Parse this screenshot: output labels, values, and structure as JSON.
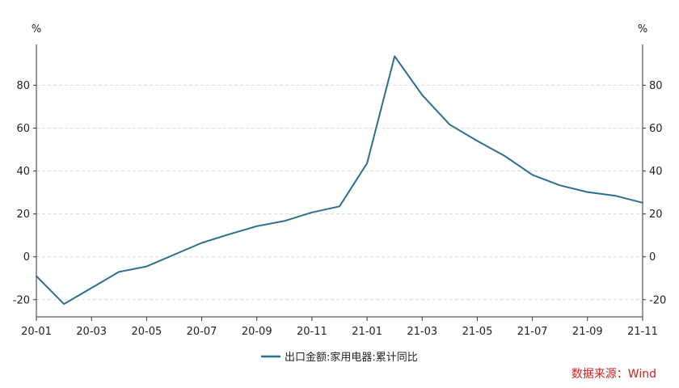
{
  "chart_data": {
    "type": "line",
    "x": [
      "20-01",
      "20-02",
      "20-03",
      "20-04",
      "20-05",
      "20-06",
      "20-07",
      "20-08",
      "20-09",
      "20-10",
      "20-11",
      "20-12",
      "21-01",
      "21-02",
      "21-03",
      "21-04",
      "21-05",
      "21-06",
      "21-07",
      "21-08",
      "21-09",
      "21-10",
      "21-11"
    ],
    "x_tick_labels": [
      "20-01",
      "20-03",
      "20-05",
      "20-07",
      "20-09",
      "20-11",
      "21-01",
      "21-03",
      "21-05",
      "21-07",
      "21-09",
      "21-11"
    ],
    "series": [
      {
        "name": "出口金额:家用电器:累计同比",
        "color": "#2a6f8f",
        "values": [
          -9,
          -22,
          -14.5,
          -7,
          -4.5,
          1,
          6.5,
          10.5,
          14.3,
          16.7,
          20.7,
          23.5,
          43.6,
          93.5,
          75.4,
          61.6,
          54,
          47,
          38.2,
          33.3,
          30.2,
          28.5,
          25.2
        ]
      }
    ],
    "ylim": [
      -28,
      99
    ],
    "y_ticks": [
      -20,
      0,
      20,
      40,
      60,
      80
    ],
    "y_unit_left": "%",
    "y_unit_right": "%",
    "grid": true,
    "legend_position": "bottom-center"
  },
  "source": {
    "text": "数据来源：Wind",
    "color": "#cc2222"
  }
}
